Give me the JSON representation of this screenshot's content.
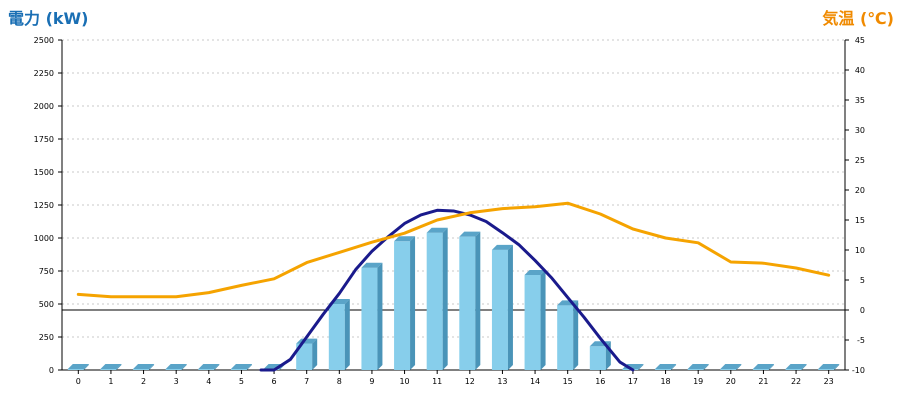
{
  "chart_data": {
    "type": "bar",
    "left_axis_title": "電力 (kW)",
    "right_axis_title": "気温 (℃)",
    "categories": [
      "0",
      "1",
      "2",
      "3",
      "4",
      "5",
      "6",
      "7",
      "8",
      "9",
      "10",
      "11",
      "12",
      "13",
      "14",
      "15",
      "16",
      "17",
      "18",
      "19",
      "20",
      "21",
      "22",
      "23"
    ],
    "left_ticks": [
      "0",
      "250",
      "500",
      "750",
      "1000",
      "1250",
      "1500",
      "1750",
      "2000",
      "2250",
      "2500"
    ],
    "right_ticks": [
      "-10",
      "-5",
      "0",
      "5",
      "10",
      "15",
      "20",
      "25",
      "30",
      "35",
      "40",
      "45"
    ],
    "ylim_left": [
      0,
      2500
    ],
    "ylim_right": [
      -10,
      45
    ],
    "grid": true,
    "reference_line_y_right": 0,
    "series": [
      {
        "type": "bar",
        "axis": "left",
        "color": "#87ceeb",
        "values": [
          0,
          0,
          0,
          0,
          0,
          0,
          0,
          200,
          500,
          775,
          975,
          1040,
          1010,
          910,
          720,
          490,
          180,
          0,
          0,
          0,
          0,
          0,
          0,
          0
        ]
      },
      {
        "type": "line",
        "axis": "left",
        "color": "#1a1a8c",
        "x": [
          5.6,
          6,
          6.5,
          7,
          7.5,
          8,
          8.5,
          9,
          9.5,
          10,
          10.5,
          11,
          11.5,
          12,
          12.5,
          13,
          13.5,
          14,
          14.5,
          15,
          15.5,
          16,
          16.3,
          16.6,
          17
        ],
        "values": [
          0,
          0,
          80,
          250,
          420,
          580,
          760,
          900,
          1010,
          1110,
          1175,
          1210,
          1205,
          1175,
          1125,
          1040,
          950,
          830,
          700,
          550,
          400,
          240,
          150,
          60,
          0
        ]
      },
      {
        "type": "line",
        "axis": "right",
        "color": "#f5a300",
        "values": [
          2.6,
          2.2,
          2.2,
          2.2,
          2.9,
          4.1,
          5.2,
          7.9,
          9.6,
          11.3,
          12.8,
          15.0,
          16.2,
          16.9,
          17.2,
          17.8,
          16.0,
          13.5,
          12.0,
          11.2,
          8.0,
          7.8,
          7.0,
          5.8
        ]
      }
    ]
  }
}
